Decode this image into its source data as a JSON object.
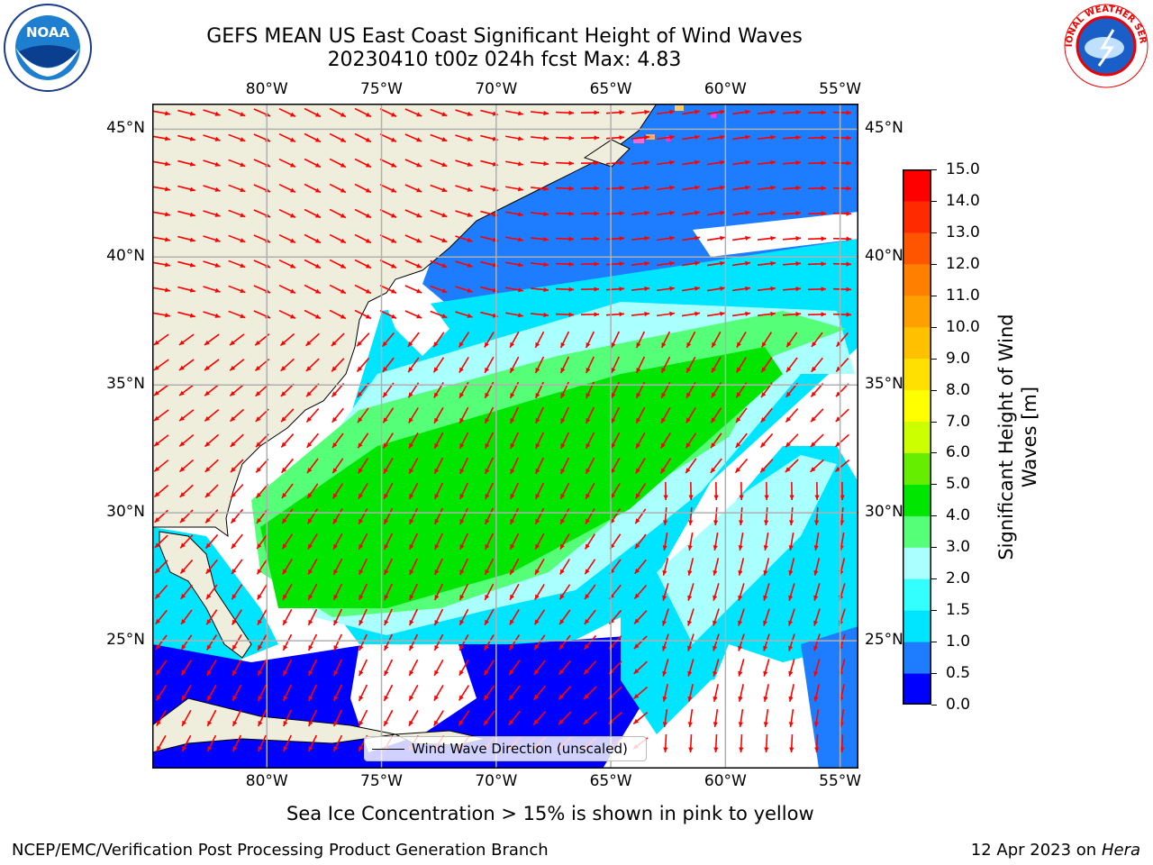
{
  "header": {
    "title_line1": "GEFS MEAN US East Coast Significant Height of Wind Waves",
    "title_line2": "20230410 t00z 024h fcst   Max: 4.83"
  },
  "logos": {
    "left": {
      "icon": "noaa-logo-icon",
      "text": "NOAA"
    },
    "right": {
      "icon": "nws-logo-icon",
      "text": "NATIONAL WEATHER SERVICE"
    }
  },
  "map": {
    "longitude_labels": [
      "80°W",
      "75°W",
      "70°W",
      "65°W",
      "60°W",
      "55°W"
    ],
    "latitude_labels": [
      "45°N",
      "40°N",
      "35°N",
      "30°N",
      "25°N"
    ],
    "lon_range": [
      -85,
      -54.2
    ],
    "lat_range": [
      20,
      46
    ],
    "land_color": "#efeedc",
    "grid_color": "#b0b0b0",
    "arrow_color": "#ff0000",
    "legend_label": "Wind Wave Direction (unscaled)"
  },
  "colorbar": {
    "label": "Significant Height of Wind Waves [m]",
    "ticks": [
      "0.0",
      "0.5",
      "1.0",
      "1.5",
      "2.0",
      "3.0",
      "4.0",
      "5.0",
      "6.0",
      "7.0",
      "8.0",
      "9.0",
      "10.0",
      "11.0",
      "12.0",
      "13.0",
      "14.0",
      "15.0"
    ],
    "colors": [
      "#0000ff",
      "#1e7dff",
      "#00e5ff",
      "#33ffff",
      "#aaffff",
      "#55ff77",
      "#00e600",
      "#66ee00",
      "#ccff00",
      "#ffff00",
      "#ffe000",
      "#ffc000",
      "#ffa000",
      "#ff8000",
      "#ff5500",
      "#ff2a00",
      "#ff0000"
    ]
  },
  "footer": {
    "sea_ice_note": "Sea Ice Concentration > 15% is shown in pink to yellow",
    "credit": "NCEP/EMC/Verification Post Processing Product Generation Branch",
    "date_prefix": "12 Apr 2023 on ",
    "date_machine": "Hera"
  }
}
